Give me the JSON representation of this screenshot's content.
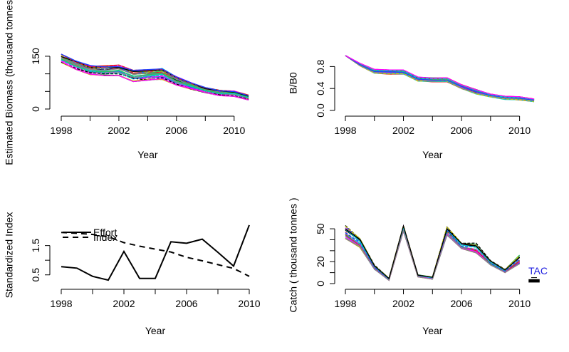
{
  "colors": {
    "axis": "#000000",
    "tac_label": "#2020e0",
    "traj": [
      "#000000",
      "#e41a1c",
      "#22c55e",
      "#1f3fff",
      "#00cccc",
      "#ff00ff",
      "#cccc00",
      "#888888"
    ]
  },
  "chart_data": [
    {
      "id": "biomass",
      "type": "line",
      "title": "",
      "xlabel": "Year",
      "ylabel": "Estimated Biomass (thousand tonnes)",
      "xlim": [
        1998,
        2011
      ],
      "ylim": [
        0,
        160
      ],
      "xticks": [
        1998,
        2000,
        2002,
        2004,
        2006,
        2008,
        2010
      ],
      "xtick_labels": [
        "1998",
        "",
        "2002",
        "",
        "2006",
        "",
        "2010"
      ],
      "yticks": [
        0,
        50,
        100,
        150
      ],
      "ytick_labels": [
        "0",
        "",
        "",
        "150"
      ],
      "x": [
        1998,
        1999,
        2000,
        2001,
        2002,
        2003,
        2004,
        2005,
        2006,
        2007,
        2008,
        2009,
        2010,
        2011
      ],
      "median": [
        146,
        125,
        110,
        107,
        107,
        90,
        92,
        96,
        78,
        64,
        52,
        44,
        42,
        32
      ],
      "spread_low": [
        -14,
        -12,
        -12,
        -12,
        -12,
        -12,
        -12,
        -12,
        -10,
        -8,
        -6,
        -6,
        -6,
        -6
      ],
      "spread_high": [
        10,
        12,
        14,
        16,
        18,
        20,
        20,
        20,
        14,
        12,
        10,
        10,
        10,
        8
      ],
      "n_traj": 30
    },
    {
      "id": "b_over_b0",
      "type": "line",
      "title": "",
      "xlabel": "Year",
      "ylabel": "B/B0",
      "xlim": [
        1998,
        2011
      ],
      "ylim": [
        0,
        1
      ],
      "xticks": [
        1998,
        2000,
        2002,
        2004,
        2006,
        2008,
        2010
      ],
      "xtick_labels": [
        "1998",
        "",
        "2002",
        "",
        "2006",
        "",
        "2010"
      ],
      "yticks": [
        0,
        0.4,
        0.8
      ],
      "ytick_labels": [
        "0.0",
        "0.4",
        "0.8"
      ],
      "x": [
        1998,
        1999,
        2000,
        2001,
        2002,
        2003,
        2004,
        2005,
        2006,
        2007,
        2008,
        2009,
        2010,
        2011
      ],
      "median": [
        1.0,
        0.84,
        0.73,
        0.71,
        0.71,
        0.58,
        0.57,
        0.57,
        0.44,
        0.35,
        0.28,
        0.24,
        0.23,
        0.19
      ],
      "spread_low": [
        0,
        -0.03,
        -0.05,
        -0.05,
        -0.05,
        -0.05,
        -0.05,
        -0.05,
        -0.05,
        -0.05,
        -0.04,
        -0.04,
        -0.04,
        -0.03
      ],
      "spread_high": [
        0,
        0.02,
        0.02,
        0.03,
        0.03,
        0.03,
        0.03,
        0.03,
        0.03,
        0.03,
        0.02,
        0.02,
        0.02,
        0.02
      ],
      "n_traj": 30
    },
    {
      "id": "standardized_index",
      "type": "line",
      "title": "",
      "xlabel": "Year",
      "ylabel": "Standardized Index",
      "xlim": [
        1998,
        2010
      ],
      "ylim": [
        0.25,
        2.1
      ],
      "xticks": [
        1998,
        2000,
        2002,
        2004,
        2006,
        2008,
        2010
      ],
      "xtick_labels": [
        "1998",
        "",
        "2002",
        "",
        "2006",
        "",
        "2010"
      ],
      "yticks": [
        0.5,
        1.0,
        1.5
      ],
      "ytick_labels": [
        "0.5",
        "",
        "1.5"
      ],
      "legend_position": "top-left",
      "series": [
        {
          "name": "Effort",
          "style": "solid",
          "x": [
            1998,
            1999,
            2000,
            2001,
            2002,
            2003,
            2004,
            2005,
            2006,
            2007,
            2008,
            2009,
            2010
          ],
          "values": [
            0.78,
            0.73,
            0.45,
            0.32,
            1.3,
            0.38,
            0.38,
            1.63,
            1.58,
            1.72,
            1.27,
            0.8,
            2.2
          ]
        },
        {
          "name": "Index",
          "style": "dashed",
          "x": [
            1998,
            1999,
            2000,
            2001,
            2002,
            2003,
            2004,
            2005,
            2006,
            2007,
            2008,
            2009,
            2010
          ],
          "values": [
            1.95,
            1.92,
            1.88,
            1.8,
            1.6,
            1.48,
            1.38,
            1.28,
            1.1,
            0.98,
            0.85,
            0.72,
            0.45
          ]
        }
      ]
    },
    {
      "id": "catch",
      "type": "line",
      "title": "",
      "xlabel": "Year",
      "ylabel": "Catch ( thousand tonnes )",
      "xlim": [
        1998,
        2011
      ],
      "ylim": [
        0,
        52
      ],
      "xticks": [
        1998,
        2000,
        2002,
        2004,
        2006,
        2008,
        2010
      ],
      "xtick_labels": [
        "1998",
        "",
        "2002",
        "",
        "2006",
        "",
        "2010"
      ],
      "yticks": [
        0,
        10,
        20,
        30,
        40,
        50
      ],
      "ytick_labels": [
        "0",
        "",
        "20",
        "",
        "",
        "50"
      ],
      "x": [
        1998,
        1999,
        2000,
        2001,
        2002,
        2003,
        2004,
        2005,
        2006,
        2007,
        2008,
        2009,
        2010
      ],
      "median": [
        46,
        37,
        15,
        4,
        50,
        7,
        5,
        48,
        35,
        31,
        19,
        11,
        21
      ],
      "spread_low": [
        -5,
        -4,
        -2,
        -1,
        -2,
        -1,
        -1,
        -4,
        -3,
        -3,
        -2,
        -1,
        -3
      ],
      "spread_high": [
        7,
        4,
        2,
        1,
        3,
        1,
        1,
        4,
        2,
        6,
        2,
        2,
        5
      ],
      "n_traj": 25,
      "tac_label": "TAC",
      "tac_boxplot": {
        "x": 2011,
        "values": [
          1.5,
          2.5,
          3.5
        ]
      }
    }
  ]
}
